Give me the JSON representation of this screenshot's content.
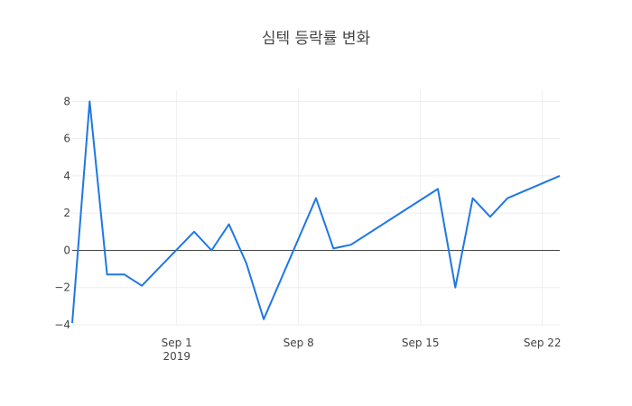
{
  "chart_data": {
    "type": "line",
    "title": "심텍 등락률 변화",
    "xlabel": "",
    "ylabel": "",
    "x": [
      "2019-08-26",
      "2019-08-27",
      "2019-08-28",
      "2019-08-29",
      "2019-08-30",
      "2019-09-02",
      "2019-09-03",
      "2019-09-04",
      "2019-09-05",
      "2019-09-06",
      "2019-09-09",
      "2019-09-10",
      "2019-09-11",
      "2019-09-16",
      "2019-09-17",
      "2019-09-18",
      "2019-09-19",
      "2019-09-20",
      "2019-09-23"
    ],
    "x_range": [
      "2019-08-26",
      "2019-09-23"
    ],
    "x_ticks": [
      {
        "date": "2019-09-01",
        "label": "Sep 1",
        "sublabel": "2019"
      },
      {
        "date": "2019-09-08",
        "label": "Sep 8",
        "sublabel": ""
      },
      {
        "date": "2019-09-15",
        "label": "Sep 15",
        "sublabel": ""
      },
      {
        "date": "2019-09-22",
        "label": "Sep 22",
        "sublabel": ""
      }
    ],
    "series": [
      {
        "values": [
          -3.9,
          8.0,
          -1.3,
          -1.3,
          -1.9,
          1.0,
          0.0,
          1.4,
          -0.7,
          -3.7,
          2.8,
          0.1,
          0.3,
          3.3,
          -2.0,
          2.8,
          1.8,
          2.8,
          4.0
        ],
        "color": "#1f77e4"
      }
    ],
    "ylim": [
      -4,
      8.6
    ],
    "y_ticks": [
      {
        "value": 8,
        "label": "8"
      },
      {
        "value": 6,
        "label": "6"
      },
      {
        "value": 4,
        "label": "4"
      },
      {
        "value": 2,
        "label": "2"
      },
      {
        "value": 0,
        "label": "0"
      },
      {
        "value": -2,
        "label": "−2"
      },
      {
        "value": -4,
        "label": "−4"
      }
    ],
    "grid": true,
    "zero_line": true
  }
}
